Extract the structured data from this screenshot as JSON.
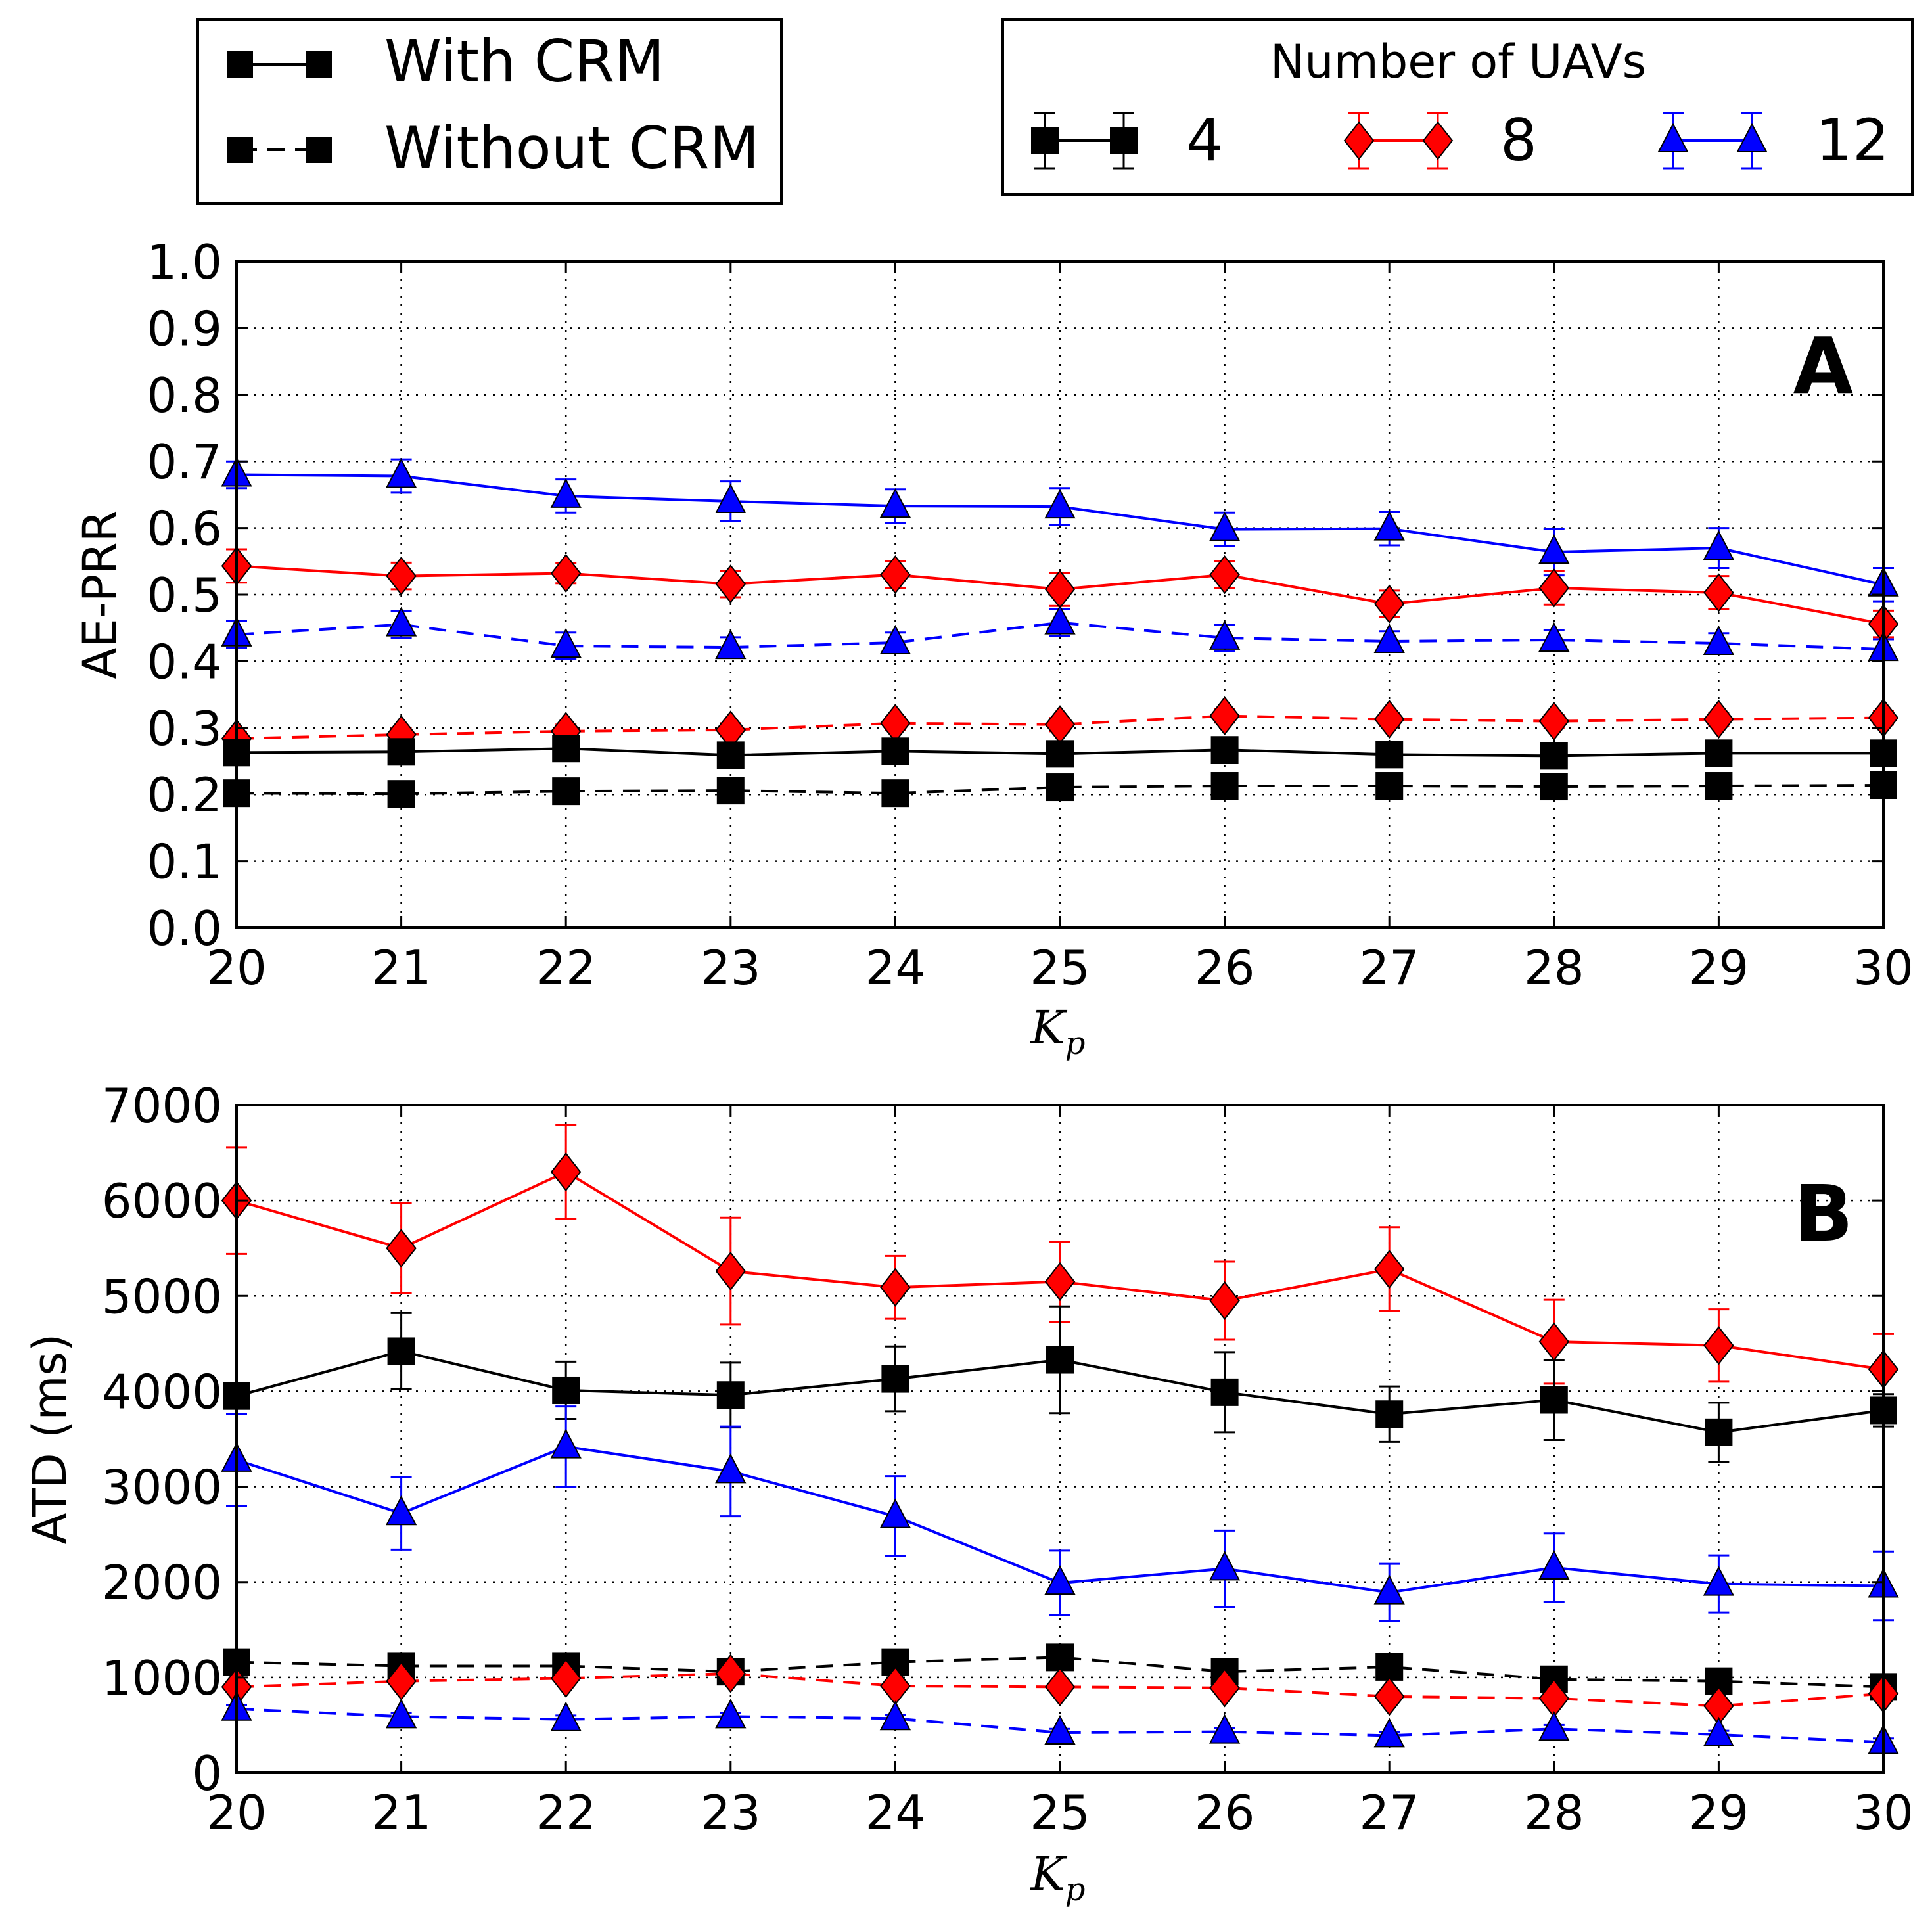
{
  "legend_style": {
    "with_crm": "With CRM",
    "without_crm": "Without CRM"
  },
  "legend_uavs": {
    "title": "Number of UAVs",
    "entries": [
      {
        "label": "4",
        "color": "#000000",
        "marker": "square"
      },
      {
        "label": "8",
        "color": "#ff0000",
        "marker": "diamond"
      },
      {
        "label": "12",
        "color": "#0000ff",
        "marker": "triangle"
      }
    ]
  },
  "chart_data": [
    {
      "type": "line",
      "panel_label": "A",
      "xlabel": "K",
      "xlabel_sub": "p",
      "ylabel": "AE-PRR",
      "xlim": [
        20,
        30
      ],
      "ylim": [
        0,
        1
      ],
      "grid": true,
      "x": [
        20,
        21,
        22,
        23,
        24,
        25,
        26,
        27,
        28,
        29,
        30
      ],
      "x_ticks": [
        "20",
        "21",
        "22",
        "23",
        "24",
        "25",
        "26",
        "27",
        "28",
        "29",
        "30"
      ],
      "y_ticks": [
        "0.0",
        "0.1",
        "0.2",
        "0.3",
        "0.4",
        "0.5",
        "0.6",
        "0.7",
        "0.8",
        "0.9",
        "1.0"
      ],
      "series": [
        {
          "name": "12 UAVs - With CRM",
          "uavs": "12",
          "crm": true,
          "color": "#0000ff",
          "marker": "triangle",
          "values": [
            0.68,
            0.678,
            0.648,
            0.64,
            0.633,
            0.632,
            0.598,
            0.599,
            0.564,
            0.57,
            0.515
          ],
          "errors": [
            0.02,
            0.025,
            0.025,
            0.03,
            0.025,
            0.028,
            0.025,
            0.025,
            0.035,
            0.03,
            0.025
          ]
        },
        {
          "name": "8 UAVs - With CRM",
          "uavs": "8",
          "crm": true,
          "color": "#ff0000",
          "marker": "diamond",
          "values": [
            0.543,
            0.528,
            0.532,
            0.516,
            0.53,
            0.508,
            0.53,
            0.486,
            0.51,
            0.503,
            0.456
          ],
          "errors": [
            0.025,
            0.02,
            0.015,
            0.02,
            0.02,
            0.025,
            0.02,
            0.02,
            0.025,
            0.025,
            0.02
          ]
        },
        {
          "name": "12 UAVs - Without CRM",
          "uavs": "12",
          "crm": false,
          "color": "#0000ff",
          "marker": "triangle",
          "values": [
            0.44,
            0.455,
            0.423,
            0.421,
            0.428,
            0.458,
            0.435,
            0.43,
            0.432,
            0.427,
            0.418
          ],
          "errors": [
            0.02,
            0.02,
            0.02,
            0.015,
            0.015,
            0.02,
            0.02,
            0.015,
            0.015,
            0.015,
            0.015
          ]
        },
        {
          "name": "8 UAVs - Without CRM",
          "uavs": "8",
          "crm": false,
          "color": "#ff0000",
          "marker": "diamond",
          "values": [
            0.284,
            0.29,
            0.295,
            0.297,
            0.307,
            0.305,
            0.318,
            0.313,
            0.31,
            0.313,
            0.315
          ],
          "errors": [
            0.01,
            0.01,
            0.01,
            0.01,
            0.01,
            0.01,
            0.01,
            0.01,
            0.01,
            0.01,
            0.01
          ]
        },
        {
          "name": "4 UAVs - With CRM",
          "uavs": "4",
          "crm": true,
          "color": "#000000",
          "marker": "square",
          "values": [
            0.263,
            0.264,
            0.269,
            0.259,
            0.265,
            0.261,
            0.267,
            0.26,
            0.258,
            0.262,
            0.262
          ],
          "errors": [
            0.008,
            0.008,
            0.008,
            0.008,
            0.008,
            0.008,
            0.008,
            0.008,
            0.008,
            0.008,
            0.008
          ]
        },
        {
          "name": "4 UAVs - Without CRM",
          "uavs": "4",
          "crm": false,
          "color": "#000000",
          "marker": "square",
          "values": [
            0.202,
            0.201,
            0.205,
            0.206,
            0.202,
            0.211,
            0.213,
            0.213,
            0.212,
            0.213,
            0.214
          ],
          "errors": [
            0.005,
            0.005,
            0.005,
            0.005,
            0.005,
            0.005,
            0.005,
            0.005,
            0.005,
            0.005,
            0.005
          ]
        }
      ]
    },
    {
      "type": "line",
      "panel_label": "B",
      "xlabel": "K",
      "xlabel_sub": "p",
      "ylabel": "ATD (ms)",
      "xlim": [
        20,
        30
      ],
      "ylim": [
        0,
        7000
      ],
      "grid": true,
      "x": [
        20,
        21,
        22,
        23,
        24,
        25,
        26,
        27,
        28,
        29,
        30
      ],
      "x_ticks": [
        "20",
        "21",
        "22",
        "23",
        "24",
        "25",
        "26",
        "27",
        "28",
        "29",
        "30"
      ],
      "y_ticks": [
        "0",
        "1000",
        "2000",
        "3000",
        "4000",
        "5000",
        "6000",
        "7000"
      ],
      "series": [
        {
          "name": "8 UAVs - With CRM",
          "uavs": "8",
          "crm": true,
          "color": "#ff0000",
          "marker": "diamond",
          "values": [
            6000,
            5500,
            6300,
            5260,
            5090,
            5150,
            4950,
            5280,
            4520,
            4480,
            4230
          ],
          "errors": [
            560,
            470,
            490,
            560,
            330,
            420,
            410,
            440,
            440,
            380,
            370
          ]
        },
        {
          "name": "4 UAVs - With CRM",
          "uavs": "4",
          "crm": true,
          "color": "#000000",
          "marker": "square",
          "values": [
            3950,
            4420,
            4010,
            3960,
            4130,
            4330,
            3990,
            3760,
            3910,
            3570,
            3800
          ],
          "errors": [
            130,
            400,
            300,
            340,
            340,
            560,
            420,
            290,
            420,
            310,
            170
          ]
        },
        {
          "name": "12 UAVs - With CRM",
          "uavs": "12",
          "crm": true,
          "color": "#0000ff",
          "marker": "triangle",
          "values": [
            3280,
            2720,
            3420,
            3160,
            2690,
            1990,
            2140,
            1890,
            2150,
            1980,
            1960
          ],
          "errors": [
            480,
            380,
            420,
            470,
            420,
            340,
            400,
            300,
            360,
            300,
            360
          ]
        },
        {
          "name": "4 UAVs - Without CRM",
          "uavs": "4",
          "crm": false,
          "color": "#000000",
          "marker": "square",
          "values": [
            1160,
            1120,
            1120,
            1060,
            1160,
            1210,
            1060,
            1110,
            980,
            960,
            900
          ],
          "errors": [
            60,
            60,
            60,
            60,
            60,
            60,
            60,
            60,
            60,
            60,
            60
          ]
        },
        {
          "name": "8 UAVs - Without CRM",
          "uavs": "8",
          "crm": false,
          "color": "#ff0000",
          "marker": "diamond",
          "values": [
            900,
            960,
            990,
            1040,
            910,
            900,
            890,
            800,
            780,
            700,
            830
          ],
          "errors": [
            50,
            50,
            50,
            50,
            50,
            50,
            50,
            50,
            50,
            50,
            50
          ]
        },
        {
          "name": "12 UAVs - Without CRM",
          "uavs": "12",
          "crm": false,
          "color": "#0000ff",
          "marker": "triangle",
          "values": [
            670,
            590,
            560,
            590,
            570,
            420,
            430,
            390,
            460,
            400,
            320
          ],
          "errors": [
            40,
            40,
            40,
            40,
            40,
            40,
            40,
            40,
            40,
            40,
            40
          ]
        }
      ]
    }
  ]
}
